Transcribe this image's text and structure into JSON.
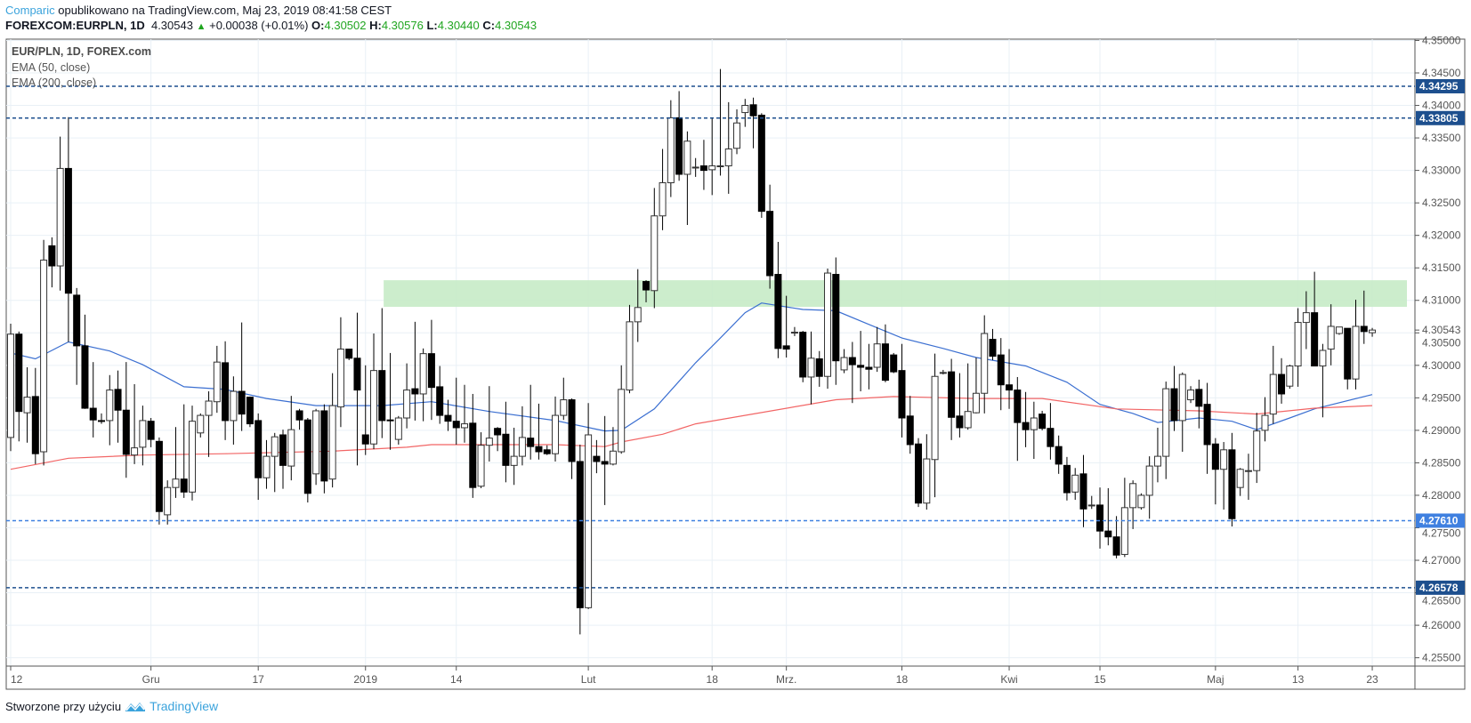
{
  "header": {
    "publisher": "Comparic",
    "published_text": "opublikowano na TradingView.com, Maj 23, 2019 08:41:58 CEST",
    "symbol": "FOREXCOM:EURPLN, 1D",
    "last": "4.30543",
    "change": "+0.00038 (+0.01%)",
    "o_label": "O:",
    "o": "4.30502",
    "h_label": "H:",
    "h": "4.30576",
    "l_label": "L:",
    "l": "4.30440",
    "c_label": "C:",
    "c": "4.30543",
    "up_icon": "triangle-up-icon"
  },
  "legend": {
    "title": "EUR/PLN, 1D, FOREX.com",
    "ema50": "EMA (50, close)",
    "ema200": "EMA (200, close)"
  },
  "footer": {
    "text": "Stworzone przy użyciu",
    "brand": "TradingView",
    "logo_icon": "tradingview-logo-icon"
  },
  "colors": {
    "ema50": "#3b6fd1",
    "ema200": "#f26565",
    "zone": "#c7ebc7",
    "level_dark": "#1d4f8e",
    "level_light": "#3f80e0",
    "brand": "#3ba3dc",
    "up": "#1fa51f"
  },
  "chart_data": {
    "type": "candlestick",
    "title": "EUR/PLN, 1D, FOREX.com",
    "ylim": [
      4.2537,
      4.3502
    ],
    "y_ticks": [
      "4.35000",
      "4.34500",
      "4.34000",
      "4.33500",
      "4.33000",
      "4.32500",
      "4.32000",
      "4.31500",
      "4.31000",
      "4.30500",
      "4.30000",
      "4.29500",
      "4.29000",
      "4.28500",
      "4.28000",
      "4.27500",
      "4.27000",
      "4.26500",
      "4.26000",
      "4.25500"
    ],
    "last_price_label": "4.30543",
    "x_ticks": [
      {
        "label": "12",
        "index": 0
      },
      {
        "label": "Gru",
        "index": 17
      },
      {
        "label": "17",
        "index": 30
      },
      {
        "label": "2019",
        "index": 43
      },
      {
        "label": "14",
        "index": 54
      },
      {
        "label": "Lut",
        "index": 70
      },
      {
        "label": "18",
        "index": 85
      },
      {
        "label": "Mrz.",
        "index": 94
      },
      {
        "label": "18",
        "index": 108
      },
      {
        "label": "Kwi",
        "index": 121
      },
      {
        "label": "15",
        "index": 132
      },
      {
        "label": "Maj",
        "index": 146
      },
      {
        "label": "13",
        "index": 156
      },
      {
        "label": "23",
        "index": 165
      }
    ],
    "levels": [
      {
        "value": 4.34295,
        "label": "4.34295",
        "tone": "dark"
      },
      {
        "value": 4.33805,
        "label": "4.33805",
        "tone": "dark"
      },
      {
        "value": 4.2761,
        "label": "4.27610",
        "tone": "light"
      },
      {
        "value": 4.26578,
        "label": "4.26578",
        "tone": "dark"
      }
    ],
    "zone": {
      "from_index": 45.2,
      "top": 4.3131,
      "bottom": 4.309
    },
    "grid": true,
    "series": [
      {
        "name": "EMA (50, close)",
        "color_key": "ema50",
        "points": [
          [
            0,
            4.3019
          ],
          [
            3,
            4.301
          ],
          [
            7,
            4.3036
          ],
          [
            12,
            4.3022
          ],
          [
            16,
            4.3001
          ],
          [
            21,
            4.2967
          ],
          [
            26,
            4.2963
          ],
          [
            31,
            4.2949
          ],
          [
            37,
            4.2938
          ],
          [
            45,
            4.2938
          ],
          [
            51,
            4.2944
          ],
          [
            58,
            4.2929
          ],
          [
            66,
            4.2915
          ],
          [
            72,
            4.2899
          ],
          [
            74,
            4.29
          ],
          [
            78,
            4.2933
          ],
          [
            83,
            4.3004
          ],
          [
            86,
            4.3042
          ],
          [
            89,
            4.3081
          ],
          [
            91,
            4.3096
          ],
          [
            96,
            4.3086
          ],
          [
            100,
            4.3084
          ],
          [
            104,
            4.3063
          ],
          [
            108,
            4.3042
          ],
          [
            113,
            4.3026
          ],
          [
            117,
            4.3012
          ],
          [
            123,
            4.2999
          ],
          [
            128,
            4.2974
          ],
          [
            132,
            4.294
          ],
          [
            136,
            4.2926
          ],
          [
            139,
            4.2912
          ],
          [
            144,
            4.2919
          ],
          [
            148,
            4.2914
          ],
          [
            151,
            4.2901
          ],
          [
            155,
            4.2919
          ],
          [
            158,
            4.2933
          ],
          [
            165,
            4.2955
          ]
        ]
      },
      {
        "name": "EMA (200, close)",
        "color_key": "ema200",
        "points": [
          [
            0,
            4.284
          ],
          [
            7,
            4.2857
          ],
          [
            16,
            4.2862
          ],
          [
            26,
            4.2864
          ],
          [
            39,
            4.2868
          ],
          [
            48,
            4.2874
          ],
          [
            51,
            4.2878
          ],
          [
            66,
            4.2878
          ],
          [
            72,
            4.2875
          ],
          [
            74,
            4.2882
          ],
          [
            79,
            4.2894
          ],
          [
            83,
            4.291
          ],
          [
            100,
            4.2947
          ],
          [
            107,
            4.2952
          ],
          [
            117,
            4.2949
          ],
          [
            125,
            4.2949
          ],
          [
            134,
            4.2933
          ],
          [
            144,
            4.293
          ],
          [
            151,
            4.2925
          ],
          [
            158,
            4.2934
          ],
          [
            165,
            4.2938
          ]
        ]
      }
    ],
    "candles_ohlc": [
      [
        4.2889,
        4.3064,
        4.2868,
        4.3048
      ],
      [
        4.3048,
        4.3052,
        4.2883,
        4.2929
      ],
      [
        4.2927,
        4.2997,
        4.2881,
        4.2951
      ],
      [
        4.2952,
        4.2996,
        4.2848,
        4.2864
      ],
      [
        4.2867,
        4.3193,
        4.2846,
        4.3162
      ],
      [
        4.3184,
        4.3197,
        4.312,
        4.3153
      ],
      [
        4.3153,
        4.3352,
        4.3115,
        4.3303
      ],
      [
        4.3303,
        4.3382,
        4.3036,
        4.3111
      ],
      [
        4.3108,
        4.3119,
        4.297,
        4.303
      ],
      [
        4.303,
        4.3078,
        4.2933,
        4.2934
      ],
      [
        4.2934,
        4.3005,
        4.2889,
        4.2916
      ],
      [
        4.2915,
        4.2926,
        4.291,
        4.2914
      ],
      [
        4.2915,
        4.2985,
        4.2877,
        4.2962
      ],
      [
        4.2963,
        4.2992,
        4.2881,
        4.2931
      ],
      [
        4.2931,
        4.3005,
        4.2827,
        4.2863
      ],
      [
        4.2862,
        4.2971,
        4.2848,
        4.2873
      ],
      [
        4.2874,
        4.2938,
        4.2846,
        4.2915
      ],
      [
        4.2914,
        4.2919,
        4.2874,
        4.2886
      ],
      [
        4.2883,
        4.2889,
        4.2755,
        4.2775
      ],
      [
        4.277,
        4.2823,
        4.2755,
        4.2812
      ],
      [
        4.2812,
        4.2905,
        4.2796,
        4.2825
      ],
      [
        4.2825,
        4.294,
        4.2796,
        4.2805
      ],
      [
        4.2805,
        4.2938,
        4.2792,
        4.2914
      ],
      [
        4.2896,
        4.2926,
        4.2889,
        4.2923
      ],
      [
        4.2923,
        4.296,
        4.2859,
        4.2945
      ],
      [
        4.2944,
        4.303,
        4.2927,
        4.3005
      ],
      [
        4.3004,
        4.3037,
        4.2885,
        4.2915
      ],
      [
        4.2915,
        4.2983,
        4.2878,
        4.296
      ],
      [
        4.296,
        4.3066,
        4.2899,
        4.2925
      ],
      [
        4.2951,
        4.2952,
        4.2905,
        4.291
      ],
      [
        4.2915,
        4.2926,
        4.2793,
        4.2827
      ],
      [
        4.2827,
        4.2885,
        4.281,
        4.286
      ],
      [
        4.286,
        4.2896,
        4.2805,
        4.289
      ],
      [
        4.2893,
        4.2901,
        4.281,
        4.2846
      ],
      [
        4.2845,
        4.2953,
        4.2823,
        4.2901
      ],
      [
        4.293,
        4.2933,
        4.2901,
        4.2916
      ],
      [
        4.2916,
        4.2919,
        4.2789,
        4.2803
      ],
      [
        4.2833,
        4.2933,
        4.2816,
        4.293
      ],
      [
        4.293,
        4.294,
        4.2803,
        4.2822
      ],
      [
        4.2825,
        4.2988,
        4.2812,
        4.2938
      ],
      [
        4.2936,
        4.3074,
        4.2905,
        4.3025
      ],
      [
        4.3025,
        4.3025,
        4.3008,
        4.3011
      ],
      [
        4.3011,
        4.3081,
        4.2846,
        4.2962
      ],
      [
        4.2893,
        4.3,
        4.2862,
        4.2879
      ],
      [
        4.2879,
        4.3049,
        4.2871,
        4.2992
      ],
      [
        4.2992,
        4.3088,
        4.2888,
        4.2915
      ],
      [
        4.2916,
        4.3019,
        4.287,
        4.2915
      ],
      [
        4.2886,
        4.2922,
        4.2878,
        4.2919
      ],
      [
        4.2919,
        4.3003,
        4.2903,
        4.2962
      ],
      [
        4.2964,
        4.3067,
        4.2915,
        4.2956
      ],
      [
        4.2956,
        4.3026,
        4.2914,
        4.3018
      ],
      [
        4.3018,
        4.307,
        4.2916,
        4.2966
      ],
      [
        4.2967,
        4.2999,
        4.291,
        4.2923
      ],
      [
        4.2923,
        4.2947,
        4.2899,
        4.2914
      ],
      [
        4.2914,
        4.2981,
        4.2878,
        4.2904
      ],
      [
        4.2904,
        4.297,
        4.2881,
        4.291
      ],
      [
        4.2911,
        4.2956,
        4.2796,
        4.2812
      ],
      [
        4.2814,
        4.2897,
        4.2811,
        4.2877
      ],
      [
        4.2877,
        4.2968,
        4.2852,
        4.2888
      ],
      [
        4.2903,
        4.2905,
        4.2868,
        4.2893
      ],
      [
        4.2894,
        4.2944,
        4.282,
        4.2846
      ],
      [
        4.2846,
        4.2904,
        4.2816,
        4.286
      ],
      [
        4.286,
        4.2937,
        4.2846,
        4.2889
      ],
      [
        4.2888,
        4.297,
        4.2855,
        4.2875
      ],
      [
        4.2875,
        4.2941,
        4.2855,
        4.2867
      ],
      [
        4.287,
        4.2877,
        4.2862,
        4.2864
      ],
      [
        4.2864,
        4.2952,
        4.2852,
        4.2923
      ],
      [
        4.2923,
        4.2981,
        4.2916,
        4.2947
      ],
      [
        4.2947,
        4.2949,
        4.2825,
        4.2852
      ],
      [
        4.2852,
        4.2878,
        4.2586,
        4.2627
      ],
      [
        4.2627,
        4.2942,
        4.2625,
        4.2893
      ],
      [
        4.286,
        4.2885,
        4.2834,
        4.2852
      ],
      [
        4.2852,
        4.2922,
        4.2785,
        4.2848
      ],
      [
        4.2848,
        4.2905,
        4.2846,
        4.2868
      ],
      [
        4.2867,
        4.3,
        4.2864,
        4.2963
      ],
      [
        4.2962,
        4.3093,
        4.2957,
        4.3067
      ],
      [
        4.3067,
        4.3148,
        4.3036,
        4.3089
      ],
      [
        4.3129,
        4.3131,
        4.3097,
        4.3116
      ],
      [
        4.3115,
        4.3273,
        4.3088,
        4.323
      ],
      [
        4.323,
        4.3333,
        4.3208,
        4.3281
      ],
      [
        4.3281,
        4.3408,
        4.3259,
        4.3381
      ],
      [
        4.3381,
        4.3422,
        4.3284,
        4.3294
      ],
      [
        4.3294,
        4.336,
        4.3216,
        4.3345
      ],
      [
        4.3305,
        4.3319,
        4.329,
        4.3305
      ],
      [
        4.3307,
        4.3347,
        4.327,
        4.33
      ],
      [
        4.3301,
        4.3381,
        4.3262,
        4.3307
      ],
      [
        4.3307,
        4.3456,
        4.3292,
        4.3307
      ],
      [
        4.3307,
        4.3405,
        4.3264,
        4.3333
      ],
      [
        4.3334,
        4.3394,
        4.3325,
        4.3373
      ],
      [
        4.3389,
        4.341,
        4.3367,
        4.34
      ],
      [
        4.3401,
        4.3412,
        4.3334,
        4.3384
      ],
      [
        4.3385,
        4.3388,
        4.3227,
        4.3237
      ],
      [
        4.3237,
        4.3278,
        4.3118,
        4.3138
      ],
      [
        4.314,
        4.319,
        4.3011,
        4.3026
      ],
      [
        4.303,
        4.3107,
        4.3012,
        4.3025
      ],
      [
        4.3051,
        4.3059,
        4.3045,
        4.3051
      ],
      [
        4.3051,
        4.3053,
        4.2974,
        4.2982
      ],
      [
        4.2982,
        4.3052,
        4.294,
        4.3011
      ],
      [
        4.301,
        4.3022,
        4.2967,
        4.2983
      ],
      [
        4.2983,
        4.3149,
        4.2964,
        4.3142
      ],
      [
        4.314,
        4.3166,
        4.297,
        4.3007
      ],
      [
        4.2993,
        4.3025,
        4.2988,
        4.3012
      ],
      [
        4.3012,
        4.3036,
        4.2942,
        4.3001
      ],
      [
        4.3,
        4.3053,
        4.296,
        4.2997
      ],
      [
        4.2997,
        4.3033,
        4.2963,
        4.2994
      ],
      [
        4.2997,
        4.3059,
        4.299,
        4.3033
      ],
      [
        4.3033,
        4.3063,
        4.2974,
        4.2977
      ],
      [
        4.3016,
        4.3019,
        4.2988,
        4.299
      ],
      [
        4.2992,
        4.3033,
        4.2889,
        4.2919
      ],
      [
        4.2922,
        4.2953,
        4.2864,
        4.2878
      ],
      [
        4.2879,
        4.2888,
        4.2782,
        4.2788
      ],
      [
        4.2788,
        4.2894,
        4.2778,
        4.2856
      ],
      [
        4.2855,
        4.3018,
        4.2797,
        4.2983
      ],
      [
        4.2989,
        4.2993,
        4.2986,
        4.2989
      ],
      [
        4.299,
        4.301,
        4.2885,
        4.292
      ],
      [
        4.2922,
        4.2988,
        4.2889,
        4.2904
      ],
      [
        4.2904,
        4.3003,
        4.2901,
        4.2929
      ],
      [
        4.2927,
        4.3012,
        4.2926,
        4.2957
      ],
      [
        4.2957,
        4.3077,
        4.2926,
        4.3049
      ],
      [
        4.304,
        4.3056,
        4.3008,
        4.3014
      ],
      [
        4.3016,
        4.3042,
        4.2931,
        4.297
      ],
      [
        4.297,
        4.3025,
        4.2933,
        4.2962
      ],
      [
        4.2962,
        4.2982,
        4.2853,
        4.2912
      ],
      [
        4.2912,
        4.2959,
        4.2874,
        4.2901
      ],
      [
        4.2901,
        4.2944,
        4.2856,
        4.2919
      ],
      [
        4.2925,
        4.293,
        4.29,
        4.2903
      ],
      [
        4.2903,
        4.2942,
        4.2855,
        4.2875
      ],
      [
        4.2875,
        4.2892,
        4.2833,
        4.2848
      ],
      [
        4.2846,
        4.2859,
        4.2792,
        4.2804
      ],
      [
        4.2805,
        4.2842,
        4.2793,
        4.2831
      ],
      [
        4.2833,
        4.2862,
        4.2751,
        4.2779
      ],
      [
        4.2785,
        4.2799,
        4.2779,
        4.2785
      ],
      [
        4.2785,
        4.2812,
        4.2718,
        4.2745
      ],
      [
        4.2745,
        4.2811,
        4.2723,
        4.2736
      ],
      [
        4.2736,
        4.2768,
        4.2703,
        4.2708
      ],
      [
        4.2709,
        4.2827,
        4.2705,
        4.2781
      ],
      [
        4.2781,
        4.2823,
        4.2748,
        4.2818
      ],
      [
        4.2781,
        4.2803,
        4.2778,
        4.28
      ],
      [
        4.28,
        4.286,
        4.2764,
        4.2845
      ],
      [
        4.2845,
        4.2904,
        4.282,
        4.286
      ],
      [
        4.286,
        4.2975,
        4.2825,
        4.2964
      ],
      [
        4.2964,
        4.2999,
        4.2899,
        4.2915
      ],
      [
        4.2915,
        4.2989,
        4.2867,
        4.2986
      ],
      [
        4.2947,
        4.2968,
        4.2942,
        4.2962
      ],
      [
        4.2963,
        4.2978,
        4.2903,
        4.2937
      ],
      [
        4.294,
        4.2973,
        4.2833,
        4.2878
      ],
      [
        4.2879,
        4.2888,
        4.2786,
        4.284
      ],
      [
        4.284,
        4.2882,
        4.2778,
        4.287
      ],
      [
        4.287,
        4.2896,
        4.2752,
        4.2764
      ],
      [
        4.2812,
        4.2842,
        4.2799,
        4.284
      ],
      [
        4.2838,
        4.2864,
        4.2793,
        4.2838
      ],
      [
        4.2838,
        4.2927,
        4.2819,
        4.2899
      ],
      [
        4.29,
        4.2951,
        4.2883,
        4.2923
      ],
      [
        4.2925,
        4.303,
        4.291,
        4.2986
      ],
      [
        4.2986,
        4.3011,
        4.2941,
        4.2956
      ],
      [
        4.2968,
        4.3001,
        4.2964,
        4.2999
      ],
      [
        4.2999,
        4.3088,
        4.2967,
        4.3066
      ],
      [
        4.3066,
        4.3114,
        4.3025,
        4.3081
      ],
      [
        4.3081,
        4.3144,
        4.2999,
        4.2999
      ],
      [
        4.2999,
        4.3033,
        4.292,
        4.3023
      ],
      [
        4.3025,
        4.3094,
        4.3,
        4.306
      ],
      [
        4.3049,
        4.3059,
        4.3047,
        4.3059
      ],
      [
        4.3057,
        4.3057,
        4.2963,
        4.2979
      ],
      [
        4.2979,
        4.3101,
        4.2963,
        4.306
      ],
      [
        4.306,
        4.3115,
        4.3033,
        4.3052
      ],
      [
        4.30502,
        4.30576,
        4.3044,
        4.30543
      ]
    ]
  }
}
